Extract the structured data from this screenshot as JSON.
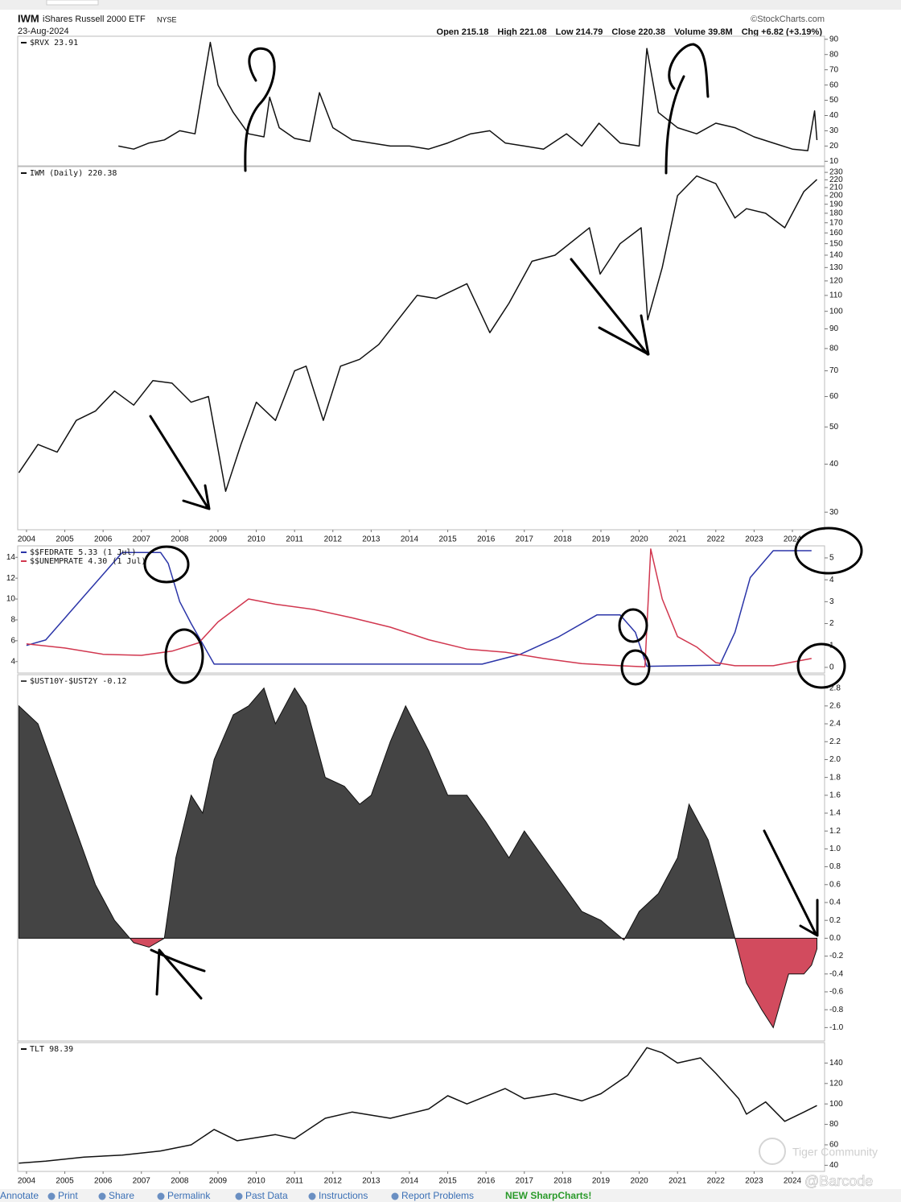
{
  "header": {
    "symbol": "IWM",
    "name": "iShares Russell 2000 ETF",
    "exchange": "NYSE",
    "date": "23-Aug-2024",
    "source": "©StockCharts.com",
    "quote": [
      "Open 215.18",
      "High 221.08",
      "Low 214.79",
      "Close 220.38",
      "Volume 39.8M",
      "Chg +6.82 (+3.19%)"
    ]
  },
  "chart_data": [
    {
      "type": "line",
      "xlim": [
        2003.77,
        2024.84
      ],
      "ylim": [
        7,
        92
      ],
      "yticks": [
        10,
        20,
        30,
        40,
        50,
        60,
        70,
        80,
        90
      ],
      "series": [
        {
          "name": "$RVX 23.91",
          "color": "#111111",
          "x": [
            2006.4,
            2006.8,
            2007.2,
            2007.6,
            2008.0,
            2008.4,
            2008.8,
            2009.0,
            2009.4,
            2009.8,
            2010.2,
            2010.35,
            2010.6,
            2011.0,
            2011.4,
            2011.65,
            2012.0,
            2012.5,
            2013.0,
            2013.5,
            2014.0,
            2014.5,
            2015.0,
            2015.6,
            2016.1,
            2016.5,
            2017.0,
            2017.5,
            2018.1,
            2018.5,
            2018.95,
            2019.5,
            2020.0,
            2020.2,
            2020.5,
            2021.0,
            2021.5,
            2022.0,
            2022.5,
            2023.0,
            2023.5,
            2024.0,
            2024.4,
            2024.58,
            2024.64
          ],
          "values": [
            20,
            18,
            22,
            24,
            30,
            28,
            88,
            60,
            42,
            28,
            26,
            52,
            32,
            25,
            23,
            55,
            32,
            24,
            22,
            20,
            20,
            18,
            22,
            28,
            30,
            22,
            20,
            18,
            28,
            20,
            35,
            22,
            20,
            84,
            42,
            32,
            28,
            35,
            32,
            26,
            22,
            18,
            17,
            43,
            23.91
          ]
        }
      ]
    },
    {
      "type": "line",
      "log": true,
      "xlim": [
        2003.77,
        2024.84
      ],
      "ylim": [
        27,
        238
      ],
      "yticks": [
        30,
        40,
        50,
        60,
        70,
        80,
        90,
        100,
        110,
        120,
        130,
        140,
        150,
        160,
        170,
        180,
        190,
        200,
        210,
        220,
        230
      ],
      "xticks": [
        2004,
        2005,
        2006,
        2007,
        2008,
        2009,
        2010,
        2011,
        2012,
        2013,
        2014,
        2015,
        2016,
        2017,
        2018,
        2019,
        2020,
        2021,
        2022,
        2023,
        2024
      ],
      "series": [
        {
          "name": "IWM (Daily) 220.38",
          "color": "#111111",
          "x": [
            2003.8,
            2004.3,
            2004.8,
            2005.3,
            2005.8,
            2006.3,
            2006.8,
            2007.3,
            2007.8,
            2008.3,
            2008.75,
            2009.2,
            2009.6,
            2010.0,
            2010.5,
            2011.0,
            2011.3,
            2011.75,
            2012.2,
            2012.7,
            2013.2,
            2013.7,
            2014.2,
            2014.7,
            2015.5,
            2016.1,
            2016.6,
            2017.2,
            2017.8,
            2018.7,
            2018.98,
            2019.5,
            2020.05,
            2020.22,
            2020.6,
            2021.0,
            2021.5,
            2022.0,
            2022.5,
            2022.8,
            2023.3,
            2023.8,
            2024.3,
            2024.64
          ],
          "values": [
            38,
            45,
            43,
            52,
            55,
            62,
            57,
            66,
            65,
            58,
            60,
            34,
            45,
            58,
            52,
            70,
            72,
            52,
            72,
            75,
            82,
            95,
            110,
            108,
            118,
            88,
            105,
            135,
            140,
            165,
            125,
            150,
            165,
            95,
            130,
            200,
            225,
            215,
            175,
            185,
            180,
            165,
            205,
            220.38
          ]
        }
      ]
    },
    {
      "type": "line",
      "xlim": [
        2003.77,
        2024.84
      ],
      "ylim": [
        2.9,
        15.1
      ],
      "yticks": [
        4,
        6,
        8,
        10,
        12,
        14
      ],
      "y2lim": [
        -0.26,
        5.55
      ],
      "y2ticks": [
        0,
        1,
        2,
        3,
        4,
        5
      ],
      "series": [
        {
          "name": "$$FEDRATE 5.33 (1 Jul)",
          "color": "#2b35a8",
          "axis": "y2",
          "x": [
            2004.0,
            2004.5,
            2005.0,
            2005.5,
            2006.0,
            2006.5,
            2007.5,
            2007.7,
            2008.0,
            2008.3,
            2008.9,
            2015.9,
            2016.9,
            2017.9,
            2018.9,
            2019.5,
            2019.9,
            2020.2,
            2022.1,
            2022.5,
            2022.9,
            2023.5,
            2024.5
          ],
          "values": [
            1.0,
            1.25,
            2.25,
            3.25,
            4.25,
            5.25,
            5.25,
            4.75,
            3.0,
            2.0,
            0.15,
            0.15,
            0.6,
            1.4,
            2.4,
            2.4,
            1.6,
            0.05,
            0.1,
            1.6,
            4.1,
            5.33,
            5.33
          ]
        },
        {
          "name": "$$UNEMPRATE 4.30 (1 Jul)",
          "color": "#d1374f",
          "x": [
            2004.0,
            2005.0,
            2006.0,
            2007.0,
            2007.8,
            2008.5,
            2009.0,
            2009.8,
            2010.5,
            2011.5,
            2012.5,
            2013.5,
            2014.5,
            2015.5,
            2016.5,
            2017.5,
            2018.5,
            2019.5,
            2020.15,
            2020.3,
            2020.6,
            2021.0,
            2021.5,
            2022.0,
            2022.5,
            2023.5,
            2024.5
          ],
          "values": [
            5.7,
            5.3,
            4.7,
            4.6,
            5.0,
            5.8,
            7.8,
            10.0,
            9.5,
            9.0,
            8.2,
            7.3,
            6.1,
            5.2,
            4.9,
            4.3,
            3.8,
            3.6,
            3.5,
            14.8,
            10.0,
            6.4,
            5.4,
            3.9,
            3.6,
            3.6,
            4.3
          ]
        }
      ]
    },
    {
      "type": "area",
      "xlim": [
        2003.77,
        2024.84
      ],
      "ylim": [
        -1.15,
        2.95
      ],
      "yticks": [
        2.8,
        2.6,
        2.4,
        2.2,
        {
          "value": 2,
          "label": "2.0"
        },
        1.8,
        1.6,
        1.4,
        1.2,
        {
          "value": 1,
          "label": "1.0"
        },
        0.8,
        0.6,
        0.4,
        0.2,
        {
          "value": 0,
          "label": "0.0"
        },
        -0.2,
        -0.4,
        -0.6,
        -0.8,
        {
          "value": -1,
          "label": "-1.0"
        }
      ],
      "series": [
        {
          "name": "$UST10Y-$UST2Y -0.12",
          "color": "#444444",
          "negative_color": "#d24b5e",
          "x": [
            2003.8,
            2004.3,
            2004.8,
            2005.3,
            2005.8,
            2006.3,
            2006.8,
            2007.2,
            2007.6,
            2007.9,
            2008.3,
            2008.6,
            2008.9,
            2009.4,
            2009.8,
            2010.2,
            2010.5,
            2011.0,
            2011.3,
            2011.8,
            2012.3,
            2012.7,
            2013.0,
            2013.5,
            2013.9,
            2014.5,
            2015.0,
            2015.5,
            2016.0,
            2016.6,
            2017.0,
            2017.5,
            2018.0,
            2018.5,
            2019.0,
            2019.6,
            2020.0,
            2020.5,
            2021.0,
            2021.3,
            2021.8,
            2022.0,
            2022.5,
            2022.8,
            2023.2,
            2023.5,
            2023.9,
            2024.3,
            2024.5,
            2024.64
          ],
          "values": [
            2.6,
            2.4,
            1.8,
            1.2,
            0.6,
            0.2,
            -0.05,
            -0.1,
            0.0,
            0.9,
            1.6,
            1.4,
            2.0,
            2.5,
            2.6,
            2.8,
            2.4,
            2.8,
            2.6,
            1.8,
            1.7,
            1.5,
            1.6,
            2.2,
            2.6,
            2.1,
            1.6,
            1.6,
            1.3,
            0.9,
            1.2,
            0.9,
            0.6,
            0.3,
            0.2,
            -0.02,
            0.3,
            0.5,
            0.9,
            1.5,
            1.1,
            0.8,
            0.0,
            -0.5,
            -0.8,
            -1.0,
            -0.4,
            -0.4,
            -0.3,
            -0.12
          ]
        }
      ]
    },
    {
      "type": "line",
      "xlim": [
        2003.77,
        2024.84
      ],
      "ylim": [
        34,
        160
      ],
      "yticks": [
        40,
        60,
        80,
        100,
        120,
        140
      ],
      "xticks": [
        2004,
        2005,
        2006,
        2007,
        2008,
        2009,
        2010,
        2011,
        2012,
        2013,
        2014,
        2015,
        2016,
        2017,
        2018,
        2019,
        2020,
        2021,
        2022,
        2023,
        2024
      ],
      "series": [
        {
          "name": "TLT 98.39",
          "color": "#111111",
          "x": [
            2003.8,
            2004.5,
            2005.5,
            2006.5,
            2007.5,
            2008.3,
            2008.9,
            2009.5,
            2010.5,
            2011.0,
            2011.8,
            2012.5,
            2013.5,
            2014.5,
            2015.0,
            2015.5,
            2016.5,
            2017.0,
            2017.8,
            2018.5,
            2019.0,
            2019.7,
            2020.2,
            2020.6,
            2021.0,
            2021.6,
            2022.0,
            2022.6,
            2022.8,
            2023.3,
            2023.8,
            2024.3,
            2024.64
          ],
          "values": [
            42,
            44,
            48,
            50,
            54,
            60,
            75,
            64,
            70,
            66,
            86,
            92,
            86,
            95,
            108,
            100,
            115,
            105,
            110,
            103,
            110,
            128,
            155,
            150,
            140,
            145,
            130,
            105,
            90,
            102,
            83,
            92,
            98.39
          ]
        }
      ]
    }
  ],
  "footer": [
    "Annotate",
    "Print",
    "Share",
    "Permalink",
    "Past Data",
    "Instructions",
    "Report Problems",
    "NEW SharpCharts!"
  ],
  "watermarks": [
    "Tiger Community",
    "@Barcode"
  ]
}
